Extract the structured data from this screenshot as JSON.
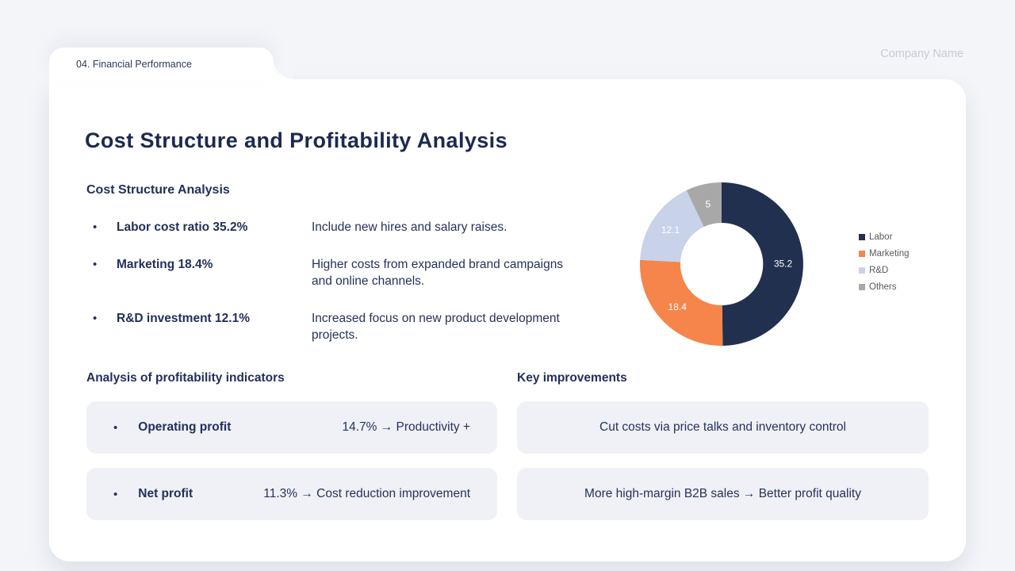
{
  "header": {
    "tab_label": "04. Financial Performance",
    "company_name": "Company Name",
    "title": "Cost Structure and Profitability Analysis"
  },
  "cost_structure": {
    "heading": "Cost Structure Analysis",
    "items": [
      {
        "label": "Labor cost ratio 35.2%",
        "description": "Include new hires and salary raises."
      },
      {
        "label": "Marketing 18.4%",
        "description": "Higher costs from expanded brand campaigns and online channels."
      },
      {
        "label": "R&D investment 12.1%",
        "description": "Increased focus on new product development projects."
      }
    ]
  },
  "chart_data": {
    "type": "pie",
    "subtype": "donut",
    "title": "",
    "categories": [
      "Labor",
      "Marketing",
      "R&D",
      "Others"
    ],
    "values": [
      35.2,
      18.4,
      12.1,
      5
    ],
    "data_labels": [
      "35.2",
      "18.4",
      "12.1",
      "5"
    ],
    "colors": [
      "#22304f",
      "#f5854a",
      "#c8d2e9",
      "#a8a8a8"
    ],
    "label_color": "#ffffff",
    "legend_position": "right",
    "start_angle_deg": 0,
    "direction": "clockwise",
    "inner_radius_ratio": 0.505
  },
  "profitability": {
    "heading": "Analysis of profitability indicators",
    "rows": [
      {
        "label": "Operating profit",
        "value": "14.7% → Productivity +"
      },
      {
        "label": "Net profit",
        "value": "11.3% → Cost reduction improvement"
      }
    ]
  },
  "improvements": {
    "heading": "Key improvements",
    "rows": [
      {
        "text": "Cut costs via price talks and inventory control"
      },
      {
        "text": "More high-margin B2B sales → Better profit quality"
      }
    ]
  }
}
